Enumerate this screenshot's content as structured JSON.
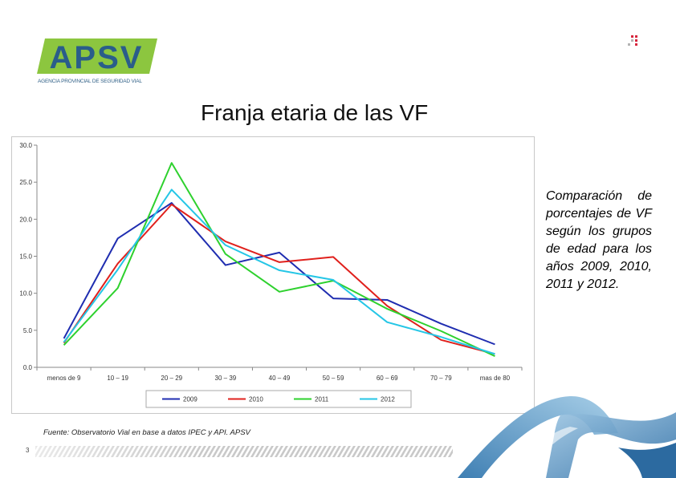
{
  "logo": {
    "text": "APSV",
    "caption": "AGENCIA PROVINCIAL DE SEGURIDAD VIAL"
  },
  "slide": {
    "title": "Franja etaria de las VF",
    "description": "Comparación de porcentajes de VF según los grupos de edad para los años 2009, 2010, 2011 y 2012.",
    "source": "Fuente: Observatorio Vial en base a datos IPEC y API. APSV",
    "page_number": "3"
  },
  "colors": {
    "brand_green": "#8cc63f",
    "brand_blue": "#2a5d8a",
    "dots_red": "#d7263d"
  },
  "chart_data": {
    "type": "line",
    "categories": [
      "menos de 9",
      "10 – 19",
      "20 – 29",
      "30 – 39",
      "40 – 49",
      "50 – 59",
      "60 – 69",
      "70 – 79",
      "mas de 80"
    ],
    "y_ticks": [
      "0.0",
      "5.0",
      "10.0",
      "15.0",
      "20.0",
      "25.0",
      "30.0"
    ],
    "ylim": [
      0,
      30
    ],
    "grid": false,
    "legend_position": "bottom",
    "series": [
      {
        "name": "2009",
        "color": "#1f2db0",
        "values": [
          3.9,
          17.4,
          22.2,
          13.8,
          15.5,
          9.3,
          9.1,
          5.9,
          3.1
        ]
      },
      {
        "name": "2010",
        "color": "#e0201c",
        "values": [
          3.3,
          14.0,
          22.0,
          17.0,
          14.2,
          14.9,
          8.3,
          3.7,
          1.8
        ]
      },
      {
        "name": "2011",
        "color": "#2ed12e",
        "values": [
          3.0,
          10.7,
          27.6,
          15.3,
          10.2,
          11.7,
          7.9,
          4.9,
          1.5
        ]
      },
      {
        "name": "2012",
        "color": "#25c6e6",
        "values": [
          3.4,
          13.2,
          24.0,
          16.5,
          13.1,
          11.8,
          6.1,
          4.1,
          1.8
        ]
      }
    ]
  }
}
